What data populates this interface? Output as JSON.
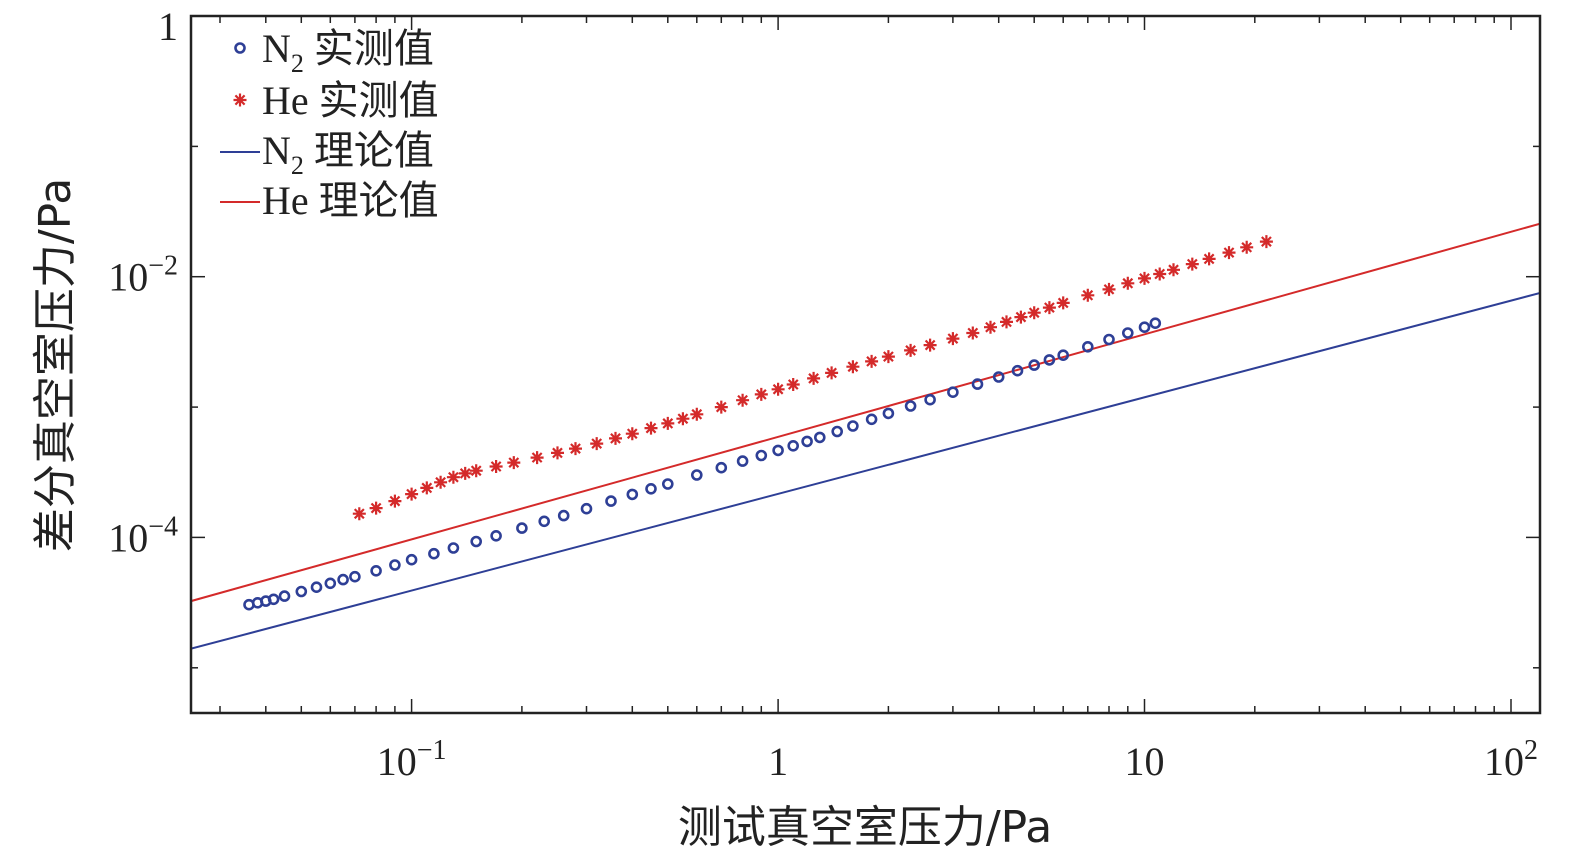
{
  "chart_data": {
    "type": "scatter",
    "xlabel": "测试真空室压力/Pa",
    "ylabel": "差分真空室压力/Pa",
    "x_scale": "log",
    "y_scale": "log",
    "xlim": [
      0.025,
      120
    ],
    "ylim": [
      4.5e-06,
      1
    ],
    "x_ticks": [
      {
        "value": 0.1,
        "base": "10",
        "exp": "−1"
      },
      {
        "value": 1,
        "base": "1",
        "exp": ""
      },
      {
        "value": 10,
        "base": "10",
        "exp": ""
      },
      {
        "value": 100,
        "base": "10",
        "exp": "2"
      }
    ],
    "y_ticks": [
      {
        "value": 0.0001,
        "base": "10",
        "exp": "−4"
      },
      {
        "value": 0.01,
        "base": "10",
        "exp": "−2"
      },
      {
        "value": 1,
        "base": "1",
        "exp": ""
      }
    ],
    "grid": false,
    "legend_position": "top-left",
    "legend": [
      {
        "series": "n2_measured",
        "name_main": "N",
        "name_sub": "2",
        "name_rest": " 实测值",
        "marker": "circle",
        "color": "#2e3f96"
      },
      {
        "series": "he_measured",
        "name_main": "He",
        "name_sub": "",
        "name_rest": " 实测值",
        "marker": "star",
        "color": "#d42a2a"
      },
      {
        "series": "n2_theory",
        "name_main": "N",
        "name_sub": "2",
        "name_rest": " 理论值",
        "marker": "line",
        "color": "#2e3f96"
      },
      {
        "series": "he_theory",
        "name_main": "He",
        "name_sub": "",
        "name_rest": " 理论值",
        "marker": "line",
        "color": "#d42a2a"
      }
    ],
    "series": [
      {
        "id": "n2_measured",
        "kind": "scatter",
        "marker": "circle",
        "color": "#2e3f96",
        "x": [
          0.036,
          0.038,
          0.04,
          0.042,
          0.045,
          0.05,
          0.055,
          0.06,
          0.065,
          0.07,
          0.08,
          0.09,
          0.1,
          0.115,
          0.13,
          0.15,
          0.17,
          0.2,
          0.23,
          0.26,
          0.3,
          0.35,
          0.4,
          0.45,
          0.5,
          0.6,
          0.7,
          0.8,
          0.9,
          1.0,
          1.1,
          1.2,
          1.3,
          1.45,
          1.6,
          1.8,
          2.0,
          2.3,
          2.6,
          3.0,
          3.5,
          4.0,
          4.5,
          5.0,
          5.5,
          6.0,
          7.0,
          8.0,
          9.0,
          10.0,
          10.7
        ],
        "y": [
          3.05e-05,
          3.15e-05,
          3.25e-05,
          3.35e-05,
          3.55e-05,
          3.85e-05,
          4.15e-05,
          4.45e-05,
          4.75e-05,
          5e-05,
          5.55e-05,
          6.15e-05,
          6.75e-05,
          7.5e-05,
          8.3e-05,
          9.3e-05,
          0.000103,
          0.000118,
          0.000133,
          0.000147,
          0.000166,
          0.00019,
          0.000214,
          0.000236,
          0.000257,
          0.000301,
          0.000343,
          0.000385,
          0.000425,
          0.000465,
          0.000505,
          0.000545,
          0.000585,
          0.00065,
          0.000716,
          0.000806,
          0.000895,
          0.00102,
          0.00114,
          0.0013,
          0.0015,
          0.0017,
          0.0019,
          0.0021,
          0.0023,
          0.0025,
          0.0029,
          0.0033,
          0.0037,
          0.0041,
          0.0044
        ]
      },
      {
        "id": "he_measured",
        "kind": "scatter",
        "marker": "star",
        "color": "#d42a2a",
        "x": [
          0.072,
          0.08,
          0.09,
          0.1,
          0.11,
          0.12,
          0.13,
          0.14,
          0.15,
          0.17,
          0.19,
          0.22,
          0.25,
          0.28,
          0.32,
          0.36,
          0.4,
          0.45,
          0.5,
          0.55,
          0.6,
          0.7,
          0.8,
          0.9,
          1.0,
          1.1,
          1.25,
          1.4,
          1.6,
          1.8,
          2.0,
          2.3,
          2.6,
          3.0,
          3.4,
          3.8,
          4.2,
          4.6,
          5.0,
          5.5,
          6.0,
          7.0,
          8.0,
          9.0,
          10.0,
          11.0,
          12.0,
          13.5,
          15.0,
          17.0,
          19.0,
          21.5
        ],
        "y": [
          0.000152,
          0.000168,
          0.00019,
          0.000215,
          0.00024,
          0.000265,
          0.00029,
          0.00031,
          0.000325,
          0.00035,
          0.000375,
          0.00041,
          0.000445,
          0.00048,
          0.000525,
          0.000575,
          0.000625,
          0.00069,
          0.00075,
          0.000815,
          0.00088,
          0.001,
          0.00113,
          0.00125,
          0.00137,
          0.00149,
          0.00166,
          0.00183,
          0.00204,
          0.00224,
          0.00244,
          0.00272,
          0.00299,
          0.00335,
          0.0037,
          0.0041,
          0.0045,
          0.0049,
          0.0053,
          0.0058,
          0.0063,
          0.0072,
          0.008,
          0.0089,
          0.0097,
          0.0105,
          0.0113,
          0.0125,
          0.0137,
          0.0153,
          0.0168,
          0.0186
        ]
      },
      {
        "id": "n2_theory",
        "kind": "line",
        "color": "#2e3f96",
        "x": [
          0.025,
          120
        ],
        "y": [
          1.4e-05,
          0.0075
        ]
      },
      {
        "id": "he_theory",
        "kind": "line",
        "color": "#d42a2a",
        "x": [
          0.025,
          120
        ],
        "y": [
          3.25e-05,
          0.0255
        ]
      }
    ]
  }
}
